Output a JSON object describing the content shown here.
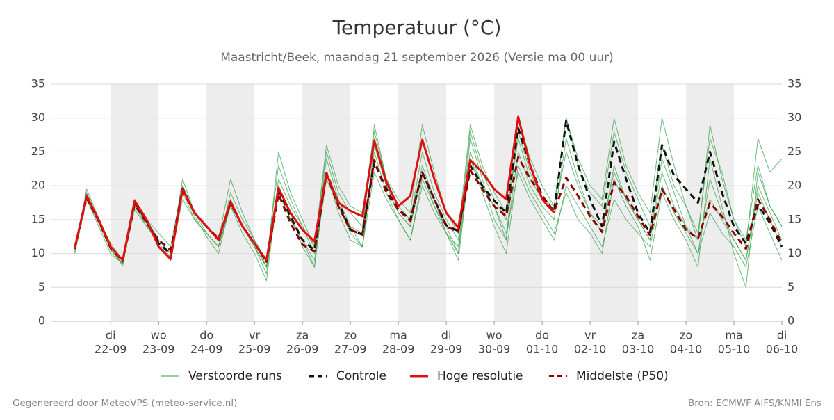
{
  "chart_data": {
    "type": "line",
    "title": "Temperatuur (°C)",
    "subtitle": "Maastricht/Beek, maandag 21 september 2026 (Versie ma 00 uur)",
    "footer_left": "Gegenereerd door MeteoVPS (meteo-service.nl)",
    "footer_right": "Bron: ECMWF AIFS/KNMI Ens",
    "xlim": [
      -1.25,
      14
    ],
    "ylim": [
      0,
      35
    ],
    "yticks": [
      0,
      5,
      10,
      15,
      20,
      25,
      30,
      35
    ],
    "grid": true,
    "xticks": [
      {
        "value": 0,
        "label": "di",
        "date": "22-09"
      },
      {
        "value": 1,
        "label": "wo",
        "date": "23-09"
      },
      {
        "value": 2,
        "label": "do",
        "date": "24-09"
      },
      {
        "value": 3,
        "label": "vr",
        "date": "25-09"
      },
      {
        "value": 4,
        "label": "za",
        "date": "26-09"
      },
      {
        "value": 5,
        "label": "zo",
        "date": "27-09"
      },
      {
        "value": 6,
        "label": "ma",
        "date": "28-09"
      },
      {
        "value": 7,
        "label": "di",
        "date": "29-09"
      },
      {
        "value": 8,
        "label": "wo",
        "date": "30-09"
      },
      {
        "value": 9,
        "label": "do",
        "date": "01-10"
      },
      {
        "value": 10,
        "label": "vr",
        "date": "02-10"
      },
      {
        "value": 11,
        "label": "za",
        "date": "03-10"
      },
      {
        "value": 12,
        "label": "zo",
        "date": "04-10"
      },
      {
        "value": 13,
        "label": "ma",
        "date": "05-10"
      },
      {
        "value": 14,
        "label": "di",
        "date": "06-10"
      }
    ],
    "x": [
      -0.75,
      -0.5,
      -0.25,
      0,
      0.25,
      0.5,
      0.75,
      1,
      1.25,
      1.5,
      1.75,
      2,
      2.25,
      2.5,
      2.75,
      3,
      3.25,
      3.5,
      3.75,
      4,
      4.25,
      4.5,
      4.75,
      5,
      5.25,
      5.5,
      5.75,
      6,
      6.25,
      6.5,
      6.75,
      7,
      7.25,
      7.5,
      7.75,
      8,
      8.25,
      8.5,
      8.75,
      9,
      9.25,
      9.5,
      9.75,
      10,
      10.25,
      10.5,
      10.75,
      11,
      11.25,
      11.5,
      11.75,
      12,
      12.25,
      12.5,
      12.75,
      13,
      13.25,
      13.5,
      13.75,
      14
    ],
    "ensemble": {
      "name": "Verstoorde runs",
      "color": "#2e9e44",
      "members": [
        [
          10.5,
          19.5,
          15.2,
          11,
          8.5,
          18,
          15,
          12,
          10,
          21,
          16,
          13,
          11,
          19,
          15,
          12,
          9,
          23,
          18,
          14,
          10,
          24,
          18,
          14,
          13,
          29,
          21,
          17,
          15,
          25,
          19,
          15,
          12,
          28,
          22,
          18,
          15,
          27,
          21,
          18,
          16,
          25,
          20,
          16,
          13,
          23,
          18,
          15,
          12,
          22,
          17,
          14,
          12,
          18,
          15,
          12,
          9,
          20,
          16,
          12
        ],
        [
          10,
          18,
          14.5,
          10.5,
          8.5,
          16.5,
          14,
          11.5,
          9.5,
          18,
          15,
          13,
          11,
          17,
          14,
          11,
          8,
          19,
          15,
          12,
          9,
          21,
          17,
          13,
          11,
          22,
          18,
          15,
          12,
          20,
          16,
          13,
          10,
          24,
          20,
          17,
          13,
          22,
          18,
          15,
          12,
          20,
          17,
          14,
          11,
          18,
          15,
          13,
          11,
          20,
          16,
          13,
          10,
          16,
          13,
          11,
          8,
          17,
          13,
          9
        ],
        [
          11,
          18.5,
          15,
          11,
          9,
          17,
          14.5,
          11,
          9,
          20,
          16,
          14,
          12,
          18,
          14,
          11,
          7,
          21,
          17,
          14,
          11,
          25,
          19,
          16,
          14,
          27,
          20,
          16,
          14,
          23,
          18,
          13,
          11,
          25,
          20,
          17,
          12,
          30,
          24,
          20,
          17,
          30,
          23,
          19,
          17,
          28,
          22,
          18,
          14,
          26,
          20,
          17,
          13,
          27,
          22,
          15,
          12,
          23,
          17,
          14
        ],
        [
          10.5,
          18,
          14,
          10,
          8.5,
          17,
          14,
          12,
          10,
          19,
          15,
          13,
          11,
          17,
          13,
          10,
          6,
          20,
          15,
          12,
          8,
          22,
          16,
          12,
          11,
          25,
          19,
          15,
          12,
          21,
          17,
          13,
          9,
          24,
          19,
          14,
          10,
          23,
          19,
          16,
          13,
          19,
          15,
          13,
          10,
          21,
          17,
          14,
          9,
          19,
          15,
          12,
          8,
          24,
          17,
          10,
          5,
          22,
          17,
          14
        ],
        [
          11,
          19,
          15,
          11.5,
          9,
          18,
          15,
          13,
          11,
          20,
          16,
          14,
          12,
          21,
          16,
          12,
          8,
          25,
          19,
          15,
          11,
          26,
          20,
          17,
          16,
          28,
          21,
          18,
          16,
          29,
          22,
          16,
          13,
          29,
          23,
          19,
          16,
          28,
          22,
          18,
          17,
          30,
          24,
          20,
          18,
          30,
          23,
          19,
          16,
          30,
          23,
          17,
          12,
          29,
          21,
          15,
          11,
          27,
          22,
          24
        ],
        [
          10.2,
          18.8,
          14.8,
          10.8,
          8.2,
          17.5,
          14.5,
          11,
          9,
          19.5,
          15.5,
          12.5,
          10,
          17.5,
          14,
          11,
          8,
          20,
          16,
          11,
          8,
          22,
          17,
          14,
          11,
          26,
          20,
          16,
          14,
          22,
          17,
          14,
          10,
          27,
          21,
          15,
          12,
          25,
          20,
          17,
          15,
          27,
          21,
          16,
          14,
          22,
          18,
          15,
          12,
          24,
          19,
          14,
          10,
          21,
          16,
          12,
          9,
          19,
          15,
          11
        ]
      ]
    },
    "series": [
      {
        "name": "Controle",
        "color": "#111111",
        "dash": true,
        "values": [
          10.8,
          18.3,
          14.9,
          10.9,
          8.9,
          17.6,
          14.8,
          11.5,
          10,
          19.6,
          16,
          14,
          12,
          17.6,
          14,
          11.5,
          8.8,
          19.5,
          15.5,
          12,
          10.5,
          21.9,
          17.5,
          13.5,
          12.8,
          23.5,
          19.5,
          16.5,
          15,
          22,
          18,
          14.2,
          13.3,
          23,
          20,
          17.8,
          16,
          28.5,
          23,
          18.5,
          16.2,
          29.6,
          23,
          18,
          14,
          26.5,
          21,
          16,
          13,
          26,
          21.5,
          19.5,
          17.5,
          25,
          19,
          14,
          11.5,
          17.2,
          14.5,
          11
        ]
      },
      {
        "name": "Hoge resolutie",
        "color": "#e01010",
        "dash": false,
        "values": [
          10.8,
          18.5,
          15,
          11,
          9,
          17.8,
          15,
          11,
          9.2,
          19.5,
          16,
          14,
          12,
          17.7,
          14,
          11.5,
          9,
          19.7,
          16,
          13.5,
          11.8,
          21.8,
          17.5,
          16.3,
          15.5,
          26.7,
          20.5,
          17,
          18.5,
          26.8,
          21,
          16,
          13.8,
          23.8,
          22,
          19.5,
          18,
          30.2,
          23,
          18,
          16,
          null,
          null,
          null,
          null,
          null,
          null,
          null,
          null,
          null,
          null,
          null,
          null,
          null,
          null,
          null,
          null,
          null,
          null,
          null
        ]
      },
      {
        "name": "Middelste (P50)",
        "color": "#8b0000",
        "dash": true,
        "values": [
          10.7,
          18.2,
          14.8,
          10.8,
          8.9,
          17.3,
          14.5,
          12,
          10.5,
          19.3,
          16,
          14,
          12.2,
          17.5,
          14,
          11.5,
          8.8,
          18.8,
          14.5,
          11.3,
          10.3,
          21.8,
          17,
          13.5,
          12.8,
          23.8,
          19,
          16.5,
          14.8,
          22,
          18,
          14,
          13.2,
          22.3,
          19.5,
          17,
          15.5,
          24.2,
          21,
          18.5,
          16.2,
          21.2,
          18.5,
          15.5,
          13.2,
          20.5,
          18.5,
          15.5,
          12.7,
          19.5,
          16.5,
          13.5,
          12.2,
          17.5,
          15.5,
          13,
          10.7,
          18,
          15,
          11.5
        ]
      }
    ]
  }
}
